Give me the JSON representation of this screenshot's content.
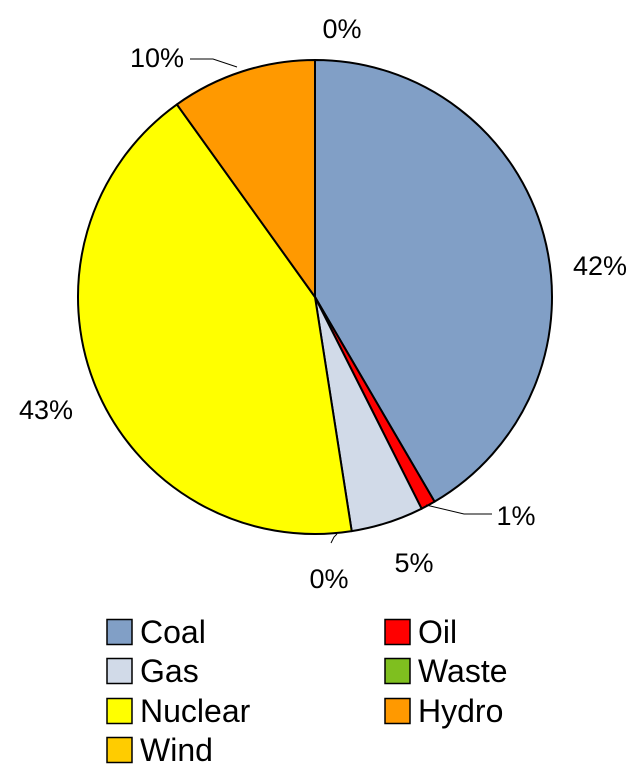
{
  "chart_data": {
    "type": "pie",
    "start_angle_deg": 0,
    "direction": "clockwise",
    "slices": [
      {
        "name": "Coal",
        "value": 42,
        "label": "42%",
        "color": "#819fc6"
      },
      {
        "name": "Oil",
        "value": 1,
        "label": "1%",
        "color": "#ff0000"
      },
      {
        "name": "Gas",
        "value": 5,
        "label": "5%",
        "color": "#d1dae8"
      },
      {
        "name": "Waste",
        "value": 0,
        "label": "0%",
        "color": "#7fbf1f"
      },
      {
        "name": "Nuclear",
        "value": 43,
        "label": "43%",
        "color": "#ffff00"
      },
      {
        "name": "Hydro",
        "value": 10,
        "label": "10%",
        "color": "#ff9900"
      },
      {
        "name": "Wind",
        "value": 0,
        "label": "0%",
        "color": "#ffcc00"
      }
    ],
    "legend": {
      "position": "bottom",
      "columns": 2,
      "entries": [
        "Coal",
        "Oil",
        "Gas",
        "Waste",
        "Nuclear",
        "Hydro",
        "Wind"
      ]
    }
  }
}
